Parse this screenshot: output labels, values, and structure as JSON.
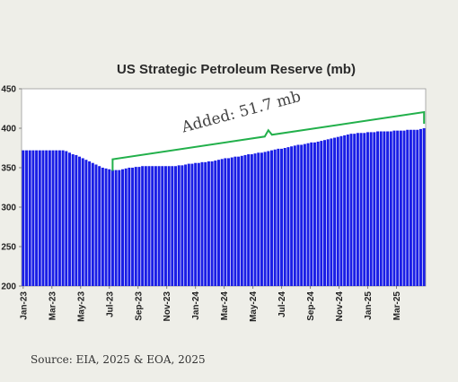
{
  "chart_data": {
    "type": "bar",
    "title": "US Strategic Petroleum Reserve (mb)",
    "xlabel": "",
    "ylabel": "",
    "ylim": [
      200,
      450
    ],
    "yticks": [
      200,
      250,
      300,
      350,
      400,
      450
    ],
    "ytick_labels": [
      "200",
      "250",
      "300",
      "350",
      "400",
      "450"
    ],
    "xtick_labels": [
      "Jan-23",
      "Mar-23",
      "May-23",
      "Jul-23",
      "Sep-23",
      "Nov-23",
      "Jan-24",
      "Mar-24",
      "May-24",
      "Jul-24",
      "Sep-24",
      "Nov-24",
      "Jan-25",
      "Mar-25"
    ],
    "bar_color": "#1a1ee6",
    "annotation": {
      "text": "Added: 51.7 mb",
      "color": "#22b04b"
    },
    "weeks_per_tick": 8.67,
    "values": [
      372,
      372,
      372,
      372,
      372,
      372,
      372,
      372,
      372,
      372,
      372,
      372,
      372,
      371,
      369,
      367,
      366,
      364,
      362,
      360,
      358,
      356,
      354,
      352,
      350,
      349,
      348,
      347,
      347,
      347,
      348,
      349,
      350,
      350,
      351,
      351,
      352,
      352,
      352,
      352,
      352,
      352,
      352,
      352,
      352,
      352,
      352,
      353,
      353,
      354,
      355,
      355,
      356,
      356,
      357,
      357,
      358,
      358,
      359,
      360,
      361,
      362,
      362,
      363,
      364,
      364,
      365,
      366,
      367,
      367,
      368,
      369,
      369,
      370,
      371,
      372,
      373,
      374,
      374,
      375,
      376,
      377,
      378,
      379,
      379,
      380,
      381,
      382,
      382,
      383,
      384,
      385,
      386,
      387,
      388,
      389,
      390,
      391,
      392,
      393,
      393,
      394,
      394,
      394,
      395,
      395,
      395,
      396,
      396,
      396,
      396,
      396,
      397,
      397,
      397,
      397,
      398,
      398,
      398,
      398,
      399,
      400
    ]
  },
  "source": "Source: EIA, 2025 & EOA, 2025"
}
